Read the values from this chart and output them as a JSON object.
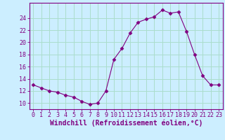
{
  "x": [
    0,
    1,
    2,
    3,
    4,
    5,
    6,
    7,
    8,
    9,
    10,
    11,
    12,
    13,
    14,
    15,
    16,
    17,
    18,
    19,
    20,
    21,
    22,
    23
  ],
  "y": [
    13.0,
    12.5,
    12.0,
    11.8,
    11.3,
    11.0,
    10.3,
    9.8,
    10.0,
    12.0,
    17.2,
    19.0,
    21.5,
    23.3,
    23.8,
    24.2,
    25.3,
    24.8,
    25.0,
    21.8,
    18.0,
    14.5,
    13.0,
    13.0
  ],
  "line_color": "#800080",
  "marker": "D",
  "marker_size": 2.5,
  "bg_color": "#cceeff",
  "grid_color": "#aaddcc",
  "ylabel_ticks": [
    10,
    12,
    14,
    16,
    18,
    20,
    22,
    24
  ],
  "xlabel": "Windchill (Refroidissement éolien,°C)",
  "ylim": [
    9.0,
    26.5
  ],
  "xlim": [
    -0.5,
    23.5
  ],
  "tick_color": "#800080",
  "tick_fontsize": 6,
  "xlabel_fontsize": 7,
  "spine_color": "#800080"
}
